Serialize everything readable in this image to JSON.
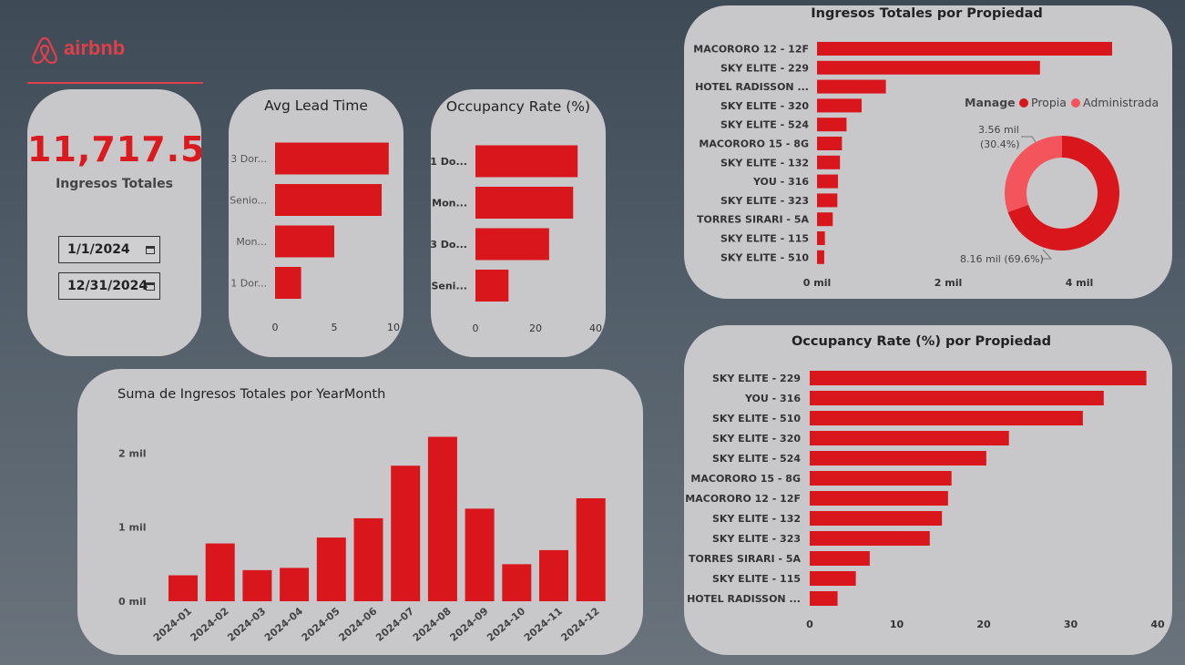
{
  "brand": {
    "name": "airbnb",
    "color": "#e0404a"
  },
  "colors": {
    "bar": "#d9161c",
    "donut_admin": "#f4545c",
    "card": "#c8c8cb"
  },
  "kpi": {
    "value": "11,717.50",
    "label": "Ingresos Totales"
  },
  "date_range": {
    "start": "1/1/2024",
    "end": "12/31/2024",
    "icon": "calendar-icon"
  },
  "chart_data": [
    {
      "id": "avg_lead_time",
      "type": "bar",
      "orientation": "horizontal",
      "title": "Avg Lead Time",
      "categories": [
        "3 Dor...",
        "Senio...",
        "Mon...",
        "1 Dor..."
      ],
      "values": [
        9.6,
        9.0,
        5.0,
        2.2
      ],
      "xlim": [
        0,
        10
      ],
      "ticks": [
        0,
        5,
        10
      ],
      "tick_labels": [
        "0",
        "5",
        "10"
      ]
    },
    {
      "id": "occupancy_rate",
      "type": "bar",
      "orientation": "horizontal",
      "title": "Occupancy Rate (%)",
      "categories": [
        "1 Do...",
        "Mon...",
        "3 Do...",
        "Seni..."
      ],
      "values": [
        34,
        32.5,
        24.5,
        11
      ],
      "xlim": [
        0,
        40
      ],
      "ticks": [
        0,
        20,
        40
      ],
      "tick_labels": [
        "0",
        "20",
        "40"
      ]
    },
    {
      "id": "ingresos_por_propiedad",
      "type": "bar",
      "orientation": "horizontal",
      "title": "Ingresos Totales por Propiedad",
      "categories": [
        "MACORORO 12 - 12F",
        "SKY ELITE - 229",
        "HOTEL RADISSON ...",
        "SKY ELITE - 320",
        "SKY ELITE - 524",
        "MACORORO 15 - 8G",
        "SKY ELITE - 132",
        "YOU - 316",
        "SKY ELITE - 323",
        "TORRES SIRARI - 5A",
        "SKY ELITE - 115",
        "SKY ELITE - 510"
      ],
      "values": [
        4.5,
        3.4,
        1.05,
        0.68,
        0.45,
        0.38,
        0.35,
        0.32,
        0.31,
        0.24,
        0.12,
        0.11
      ],
      "unit": "mil",
      "xlim": [
        0,
        4.5
      ],
      "ticks": [
        0,
        2,
        4
      ],
      "tick_labels": [
        "0 mil",
        "2 mil",
        "4 mil"
      ]
    },
    {
      "id": "manage_donut",
      "type": "pie",
      "legend_title": "Manage",
      "labels": [
        "Propia",
        "Administrada"
      ],
      "values": [
        8.16,
        3.56
      ],
      "percent": [
        69.6,
        30.4
      ],
      "data_labels": [
        [
          "8.16 mil (69.6%)"
        ],
        [
          "3.56 mil",
          "(30.4%)"
        ]
      ],
      "colors": [
        "#d9161c",
        "#f4545c"
      ]
    },
    {
      "id": "occupancy_por_propiedad",
      "type": "bar",
      "orientation": "horizontal",
      "title": "Occupancy Rate (%) por Propiedad",
      "categories": [
        "SKY ELITE - 229",
        "YOU - 316",
        "SKY ELITE - 510",
        "SKY ELITE - 320",
        "SKY ELITE - 524",
        "MACORORO 15 - 8G",
        "MACORORO 12 - 12F",
        "SKY ELITE - 132",
        "SKY ELITE - 323",
        "TORRES SIRARI - 5A",
        "SKY ELITE - 115",
        "HOTEL RADISSON ..."
      ],
      "values": [
        38.7,
        33.8,
        31.4,
        22.9,
        20.3,
        16.3,
        15.9,
        15.2,
        13.8,
        6.9,
        5.3,
        3.2
      ],
      "xlim": [
        0,
        40
      ],
      "ticks": [
        0,
        10,
        20,
        30,
        40
      ],
      "tick_labels": [
        "0",
        "10",
        "20",
        "30",
        "40"
      ]
    },
    {
      "id": "ingresos_por_mes",
      "type": "bar",
      "orientation": "vertical",
      "title": "Suma de Ingresos Totales por YearMonth",
      "categories": [
        "2024-01",
        "2024-02",
        "2024-03",
        "2024-04",
        "2024-05",
        "2024-06",
        "2024-07",
        "2024-08",
        "2024-09",
        "2024-10",
        "2024-11",
        "2024-12"
      ],
      "values": [
        0.35,
        0.78,
        0.42,
        0.45,
        0.86,
        1.12,
        1.83,
        2.22,
        1.25,
        0.5,
        0.69,
        1.39
      ],
      "unit": "mil",
      "ylim": [
        0,
        2.3
      ],
      "ticks": [
        0,
        1,
        2
      ],
      "tick_labels": [
        "0 mil",
        "1 mil",
        "2 mil"
      ]
    }
  ]
}
